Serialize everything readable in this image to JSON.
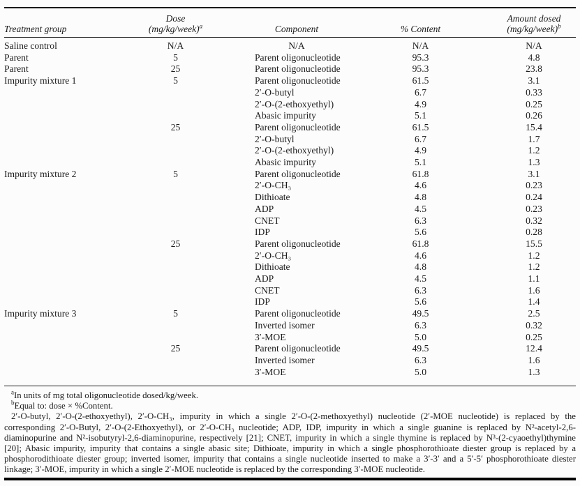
{
  "table": {
    "header": {
      "treatment_group": "Treatment group",
      "dose": {
        "line1": "Dose",
        "line2": "(mg/kg/week)",
        "sup": "a"
      },
      "component": "Component",
      "percent_content": "% Content",
      "amount_dosed": {
        "line1": "Amount dosed",
        "line2": "(mg/kg/week)",
        "sup": "b"
      }
    },
    "rows": [
      {
        "group": "Saline control",
        "dose": "N/A",
        "component": "N/A",
        "content": "N/A",
        "amount": "N/A"
      },
      {
        "group": "Parent",
        "dose": "5",
        "component": "Parent oligonucleotide",
        "content": "95.3",
        "amount": "4.8"
      },
      {
        "group": "Parent",
        "dose": "25",
        "component": "Parent oligonucleotide",
        "content": "95.3",
        "amount": "23.8"
      },
      {
        "group": "Impurity mixture 1",
        "dose": "5",
        "component": "Parent oligonucleotide",
        "content": "61.5",
        "amount": "3.1"
      },
      {
        "group": "",
        "dose": "",
        "component": "2′-O-butyl",
        "content": "6.7",
        "amount": "0.33"
      },
      {
        "group": "",
        "dose": "",
        "component": "2′-O-(2-ethoxyethyl)",
        "content": "4.9",
        "amount": "0.25"
      },
      {
        "group": "",
        "dose": "",
        "component": "Abasic impurity",
        "content": "5.1",
        "amount": "0.26"
      },
      {
        "group": "",
        "dose": "25",
        "component": "Parent oligonucleotide",
        "content": "61.5",
        "amount": "15.4"
      },
      {
        "group": "",
        "dose": "",
        "component": "2′-O-butyl",
        "content": "6.7",
        "amount": "1.7"
      },
      {
        "group": "",
        "dose": "",
        "component": "2′-O-(2-ethoxyethyl)",
        "content": "4.9",
        "amount": "1.2"
      },
      {
        "group": "",
        "dose": "",
        "component": "Abasic impurity",
        "content": "5.1",
        "amount": "1.3"
      },
      {
        "group": "Impurity mixture 2",
        "dose": "5",
        "component": "Parent oligonucleotide",
        "content": "61.8",
        "amount": "3.1"
      },
      {
        "group": "",
        "dose": "",
        "component": "2′-O-CH₃",
        "content": "4.6",
        "amount": "0.23"
      },
      {
        "group": "",
        "dose": "",
        "component": "Dithioate",
        "content": "4.8",
        "amount": "0.24"
      },
      {
        "group": "",
        "dose": "",
        "component": "ADP",
        "content": "4.5",
        "amount": "0.23"
      },
      {
        "group": "",
        "dose": "",
        "component": "CNET",
        "content": "6.3",
        "amount": "0.32"
      },
      {
        "group": "",
        "dose": "",
        "component": "IDP",
        "content": "5.6",
        "amount": "0.28"
      },
      {
        "group": "",
        "dose": "25",
        "component": "Parent oligonucleotide",
        "content": "61.8",
        "amount": "15.5"
      },
      {
        "group": "",
        "dose": "",
        "component": "2′-O-CH₃",
        "content": "4.6",
        "amount": "1.2"
      },
      {
        "group": "",
        "dose": "",
        "component": "Dithioate",
        "content": "4.8",
        "amount": "1.2"
      },
      {
        "group": "",
        "dose": "",
        "component": "ADP",
        "content": "4.5",
        "amount": "1.1"
      },
      {
        "group": "",
        "dose": "",
        "component": "CNET",
        "content": "6.3",
        "amount": "1.6"
      },
      {
        "group": "",
        "dose": "",
        "component": "IDP",
        "content": "5.6",
        "amount": "1.4"
      },
      {
        "group": "Impurity mixture 3",
        "dose": "5",
        "component": "Parent oligonucleotide",
        "content": "49.5",
        "amount": "2.5"
      },
      {
        "group": "",
        "dose": "",
        "component": "Inverted isomer",
        "content": "6.3",
        "amount": "0.32"
      },
      {
        "group": "",
        "dose": "",
        "component": "3′-MOE",
        "content": "5.0",
        "amount": "0.25"
      },
      {
        "group": "",
        "dose": "25",
        "component": "Parent oligonucleotide",
        "content": "49.5",
        "amount": "12.4"
      },
      {
        "group": "",
        "dose": "",
        "component": "Inverted isomer",
        "content": "6.3",
        "amount": "1.6"
      },
      {
        "group": "",
        "dose": "",
        "component": "3′-MOE",
        "content": "5.0",
        "amount": "1.3"
      }
    ]
  },
  "footnotes": {
    "a": {
      "marker": "a",
      "text": "In units of mg total oligonucleotide dosed/kg/week."
    },
    "b": {
      "marker": "b",
      "text": "Equal to: dose × %Content."
    },
    "definitions": "2′-O-butyl, 2′-O-(2-ethoxyethyl), 2′-O-CH₃, impurity in which a single 2′-O-(2-methoxyethyl) nucleotide (2′-MOE nucleotide) is replaced by the corresponding 2′-O-Butyl, 2′-O-(2-Ethoxyethyl), or 2′-O-CH₃ nucleotide; ADP, IDP, impurity in which a single guanine is replaced by N²-acetyl-2,6-diaminopurine and N²-isobutyryl-2,6-diaminopurine, respectively [21]; CNET, impurity in which a single thymine is replaced by N³-(2-cyaoethyl)thymine [20]; Abasic impurity, impurity that contains a single abasic site; Dithioate, impurity in which a single phosphorothioate diester group is replaced by a phosphorodithioate diester group; inverted isomer, impurity that contains a single nucleotide inserted to make a 3′-3′ and a 5′-5′ phosphorothioate diester linkage; 3′-MOE, impurity in which a single 2′-MOE nucleotide is replaced by the corresponding 3′-MOE nucleotide."
  },
  "colors": {
    "text": "#1c1c1c",
    "rule": "#1a1a1a",
    "background": "#fcfcfc"
  }
}
